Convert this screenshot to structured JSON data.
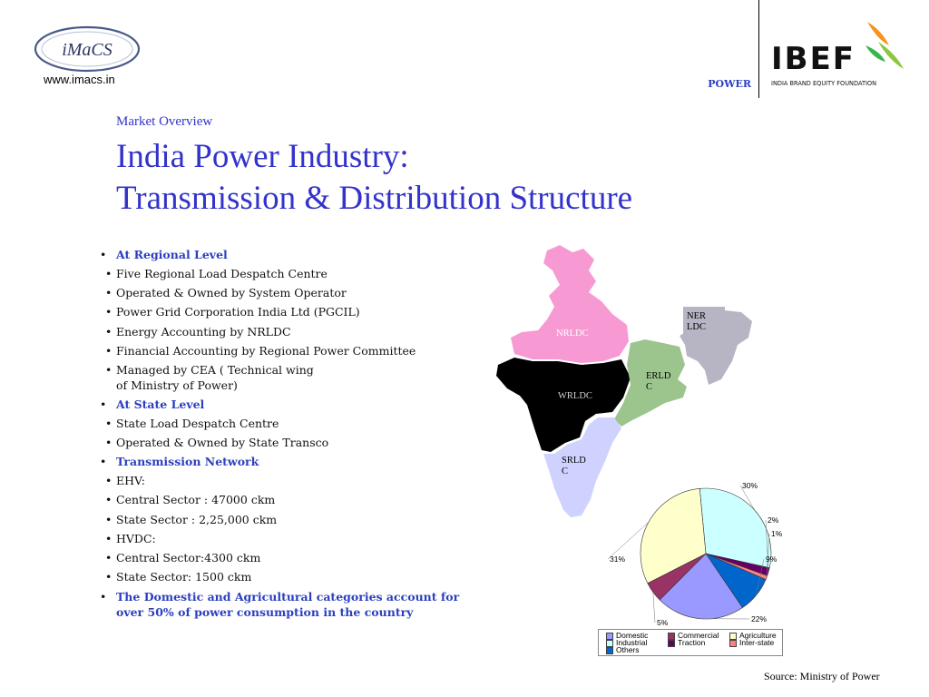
{
  "header": {
    "imacs_logo_text": "iMaCS",
    "imacs_url": "www.imacs.in",
    "power_tag": "POWER",
    "ibef_logo_text": "IBEF",
    "ibef_tagline": "INDIA BRAND EQUITY FOUNDATION"
  },
  "slide": {
    "section_label": "Market Overview",
    "title_line1": "India Power Industry:",
    "title_line2": "Transmission & Distribution Structure"
  },
  "bullets": {
    "regional": {
      "heading": "At Regional Level",
      "items": [
        "Five Regional Load Despatch Centre",
        "Operated & Owned by System Operator",
        "Power Grid Corporation India Ltd (PGCIL)",
        "Energy Accounting by NRLDC",
        "Financial Accounting by Regional Power Committee",
        "Managed by CEA ( Technical wing",
        "of Ministry of Power)"
      ]
    },
    "state": {
      "heading": "At State Level",
      "items": [
        "State Load Despatch Centre",
        "Operated & Owned by State Transco"
      ]
    },
    "transmission": {
      "heading": "Transmission Network",
      "ehv": "EHV:",
      "ehv_items": [
        "Central Sector : 47000 ckm",
        "State Sector : 2,25,000 ckm"
      ],
      "hvdc": "HVDC:",
      "hvdc_items": [
        "Central Sector:4300 ckm",
        "State Sector: 1500 ckm"
      ]
    },
    "conclusion": "The Domestic and Agricultural categories account for over 50% of power consumption in the country"
  },
  "map": {
    "labels": {
      "nrldc": "NRLDC",
      "wrldc": "WRLDC",
      "nerldc": "NER LDC",
      "erldc": "ERLD C",
      "srldc": "SRLD C"
    },
    "colors": {
      "north": "#f79ad3",
      "west": "#000000",
      "east": "#9cc58e",
      "northeast": "#b7b4c4",
      "south": "#cfd2ff"
    }
  },
  "chart_data": {
    "type": "pie",
    "title": "",
    "categories": [
      "Domestic",
      "Commercial",
      "Agriculture",
      "Industrial",
      "Traction",
      "Inter-state",
      "Others"
    ],
    "values": [
      22,
      5,
      31,
      30,
      2,
      1,
      9
    ],
    "labels": [
      "22%",
      "5%",
      "31%",
      "30%",
      "2%",
      "1%",
      "9%"
    ],
    "colors": [
      "#9999ff",
      "#993366",
      "#ffffcc",
      "#ccffff",
      "#660066",
      "#ff8080",
      "#0066cc"
    ],
    "legend_position": "bottom"
  },
  "source": "Source: Ministry of Power"
}
